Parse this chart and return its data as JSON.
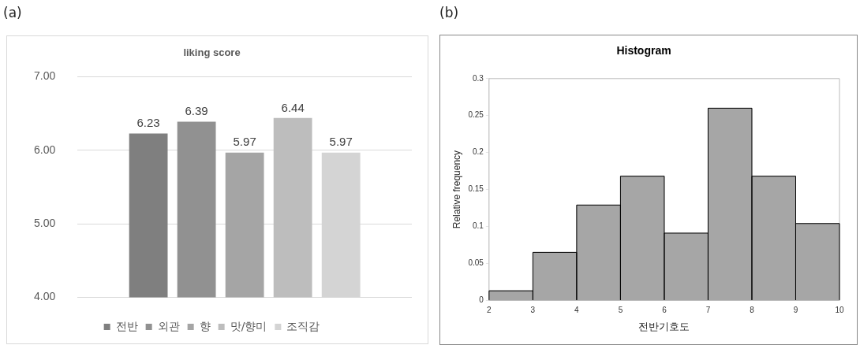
{
  "chart_data": [
    {
      "type": "bar",
      "title": "liking score",
      "categories": [
        null
      ],
      "annotations": [
        "(a)"
      ],
      "series": [
        {
          "name": "전반",
          "color": "#7f7f7f",
          "values": [
            6.23
          ]
        },
        {
          "name": "외관",
          "color": "#919191",
          "values": [
            6.39
          ]
        },
        {
          "name": "향",
          "color": "#a5a5a5",
          "values": [
            5.97
          ]
        },
        {
          "name": "맛/향미",
          "color": "#bdbdbd",
          "values": [
            6.44
          ]
        },
        {
          "name": "조직감",
          "color": "#d4d4d4",
          "values": [
            5.97
          ]
        }
      ],
      "ylim": [
        4,
        7
      ],
      "yticks": [
        {
          "value": 4,
          "label": "4.00"
        },
        {
          "value": 5,
          "label": "5.00"
        },
        {
          "value": 6,
          "label": "6.00"
        },
        {
          "value": 7,
          "label": "7.00"
        }
      ],
      "grid": "y",
      "legend": "bottom",
      "data_labels": true
    },
    {
      "type": "histogram",
      "title": "Histogram",
      "xlabel": "전반기호도",
      "ylabel": "Relative frequency",
      "annotations": [
        "(b)"
      ],
      "bins": [
        2,
        3,
        4,
        5,
        6,
        7,
        8,
        9,
        10
      ],
      "values": [
        0.013,
        0.065,
        0.129,
        0.168,
        0.091,
        0.26,
        0.168,
        0.104
      ],
      "color": "#a6a6a6",
      "xlim": [
        2,
        10
      ],
      "xticks": [
        2,
        3,
        4,
        5,
        6,
        7,
        8,
        9,
        10
      ],
      "ylim": [
        0,
        0.3
      ],
      "yticks": [
        0,
        0.05,
        0.1,
        0.15,
        0.2,
        0.25,
        0.3
      ],
      "grid": false
    }
  ]
}
